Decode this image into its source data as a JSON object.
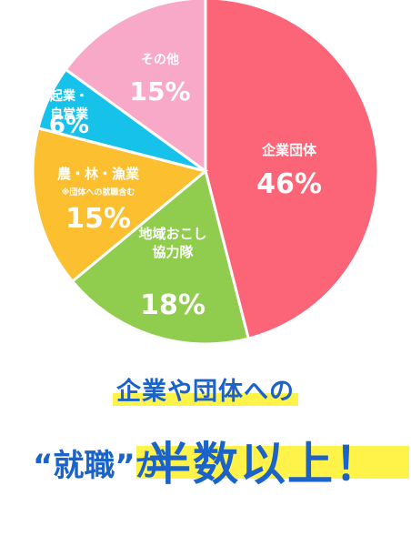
{
  "chart_data": {
    "type": "pie",
    "slices": [
      {
        "label": "企業団体",
        "value": 46,
        "color": "#fc6577",
        "text": "46%"
      },
      {
        "label": "地域おこし\n協力隊",
        "value": 18,
        "color": "#90cd4e",
        "text": "18%"
      },
      {
        "label": "農・林・漁業",
        "note": "※団体への就職含む",
        "value": 15,
        "color": "#fbbf30",
        "text": "15%"
      },
      {
        "label": "起業・\n自営業",
        "value": 6,
        "color": "#16c1ea",
        "text": "6%"
      },
      {
        "label": "その他",
        "value": 15,
        "color": "#f8a9c8",
        "text": "15%"
      }
    ]
  },
  "caption": {
    "line1": "企業や団体への",
    "line2_small": "“就職”が",
    "line2_big": "半数以上！"
  }
}
